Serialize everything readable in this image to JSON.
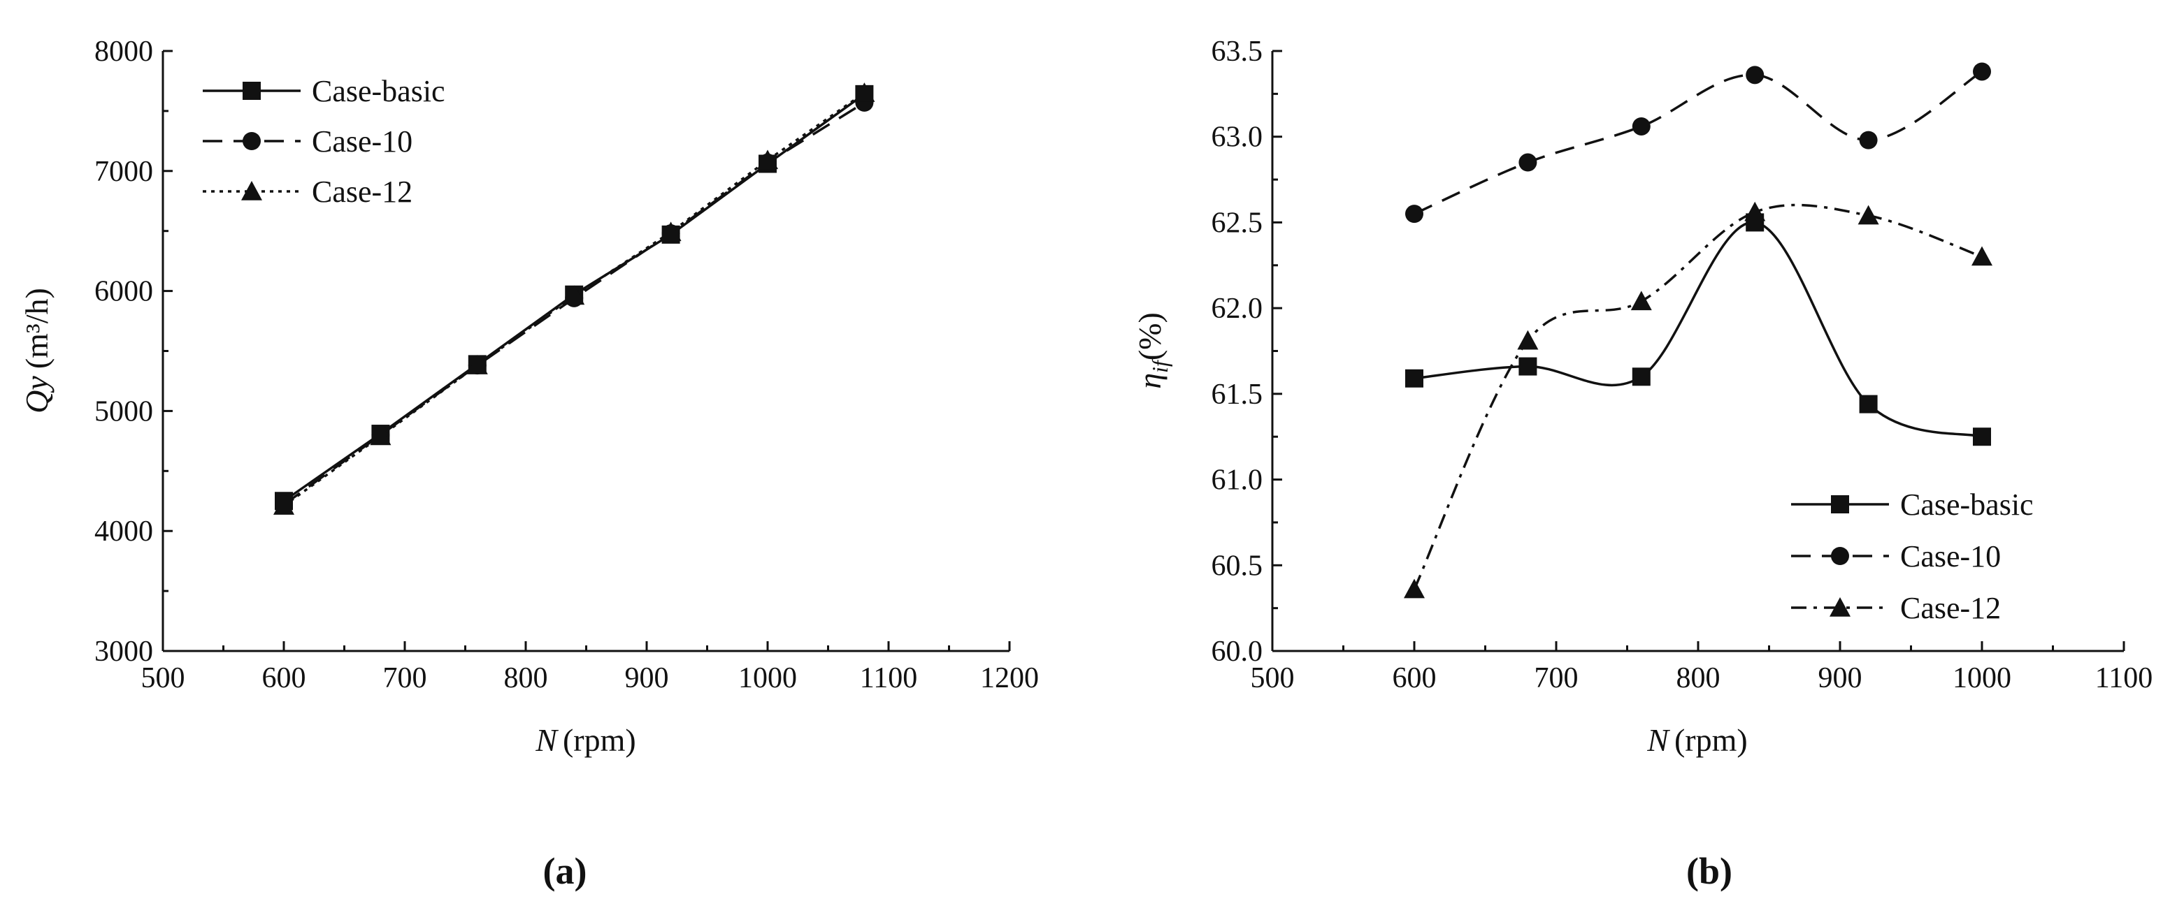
{
  "panels": [
    {
      "label": "(a)",
      "chart_data": {
        "type": "line",
        "x_label": "N",
        "x_unit": "(rpm)",
        "y_label_main": "Qy",
        "y_unit": "(m³/h)",
        "xlim": [
          500,
          1200
        ],
        "ylim": [
          3000,
          8000
        ],
        "xticks": [
          500,
          600,
          700,
          800,
          900,
          1000,
          1100,
          1200
        ],
        "yticks": [
          3000,
          4000,
          5000,
          6000,
          7000,
          8000
        ],
        "grid": false,
        "legend_position": "top-left",
        "smooth": false,
        "series": [
          {
            "name": "Case-basic",
            "dash": "solid",
            "marker": "square",
            "x": [
              600,
              680,
              760,
              840,
              920,
              1000,
              1080
            ],
            "y": [
              4250,
              4810,
              5390,
              5970,
              6470,
              7060,
              7640
            ]
          },
          {
            "name": "Case-10",
            "dash": "dashed",
            "marker": "circle",
            "x": [
              600,
              680,
              760,
              840,
              920,
              1000,
              1080
            ],
            "y": [
              4220,
              4800,
              5380,
              5940,
              6480,
              7070,
              7570
            ]
          },
          {
            "name": "Case-12",
            "dash": "dotted",
            "marker": "triangle",
            "x": [
              600,
              680,
              760,
              840,
              920,
              1000,
              1080
            ],
            "y": [
              4210,
              4790,
              5380,
              5960,
              6490,
              7090,
              7650
            ]
          }
        ]
      }
    },
    {
      "label": "(b)",
      "chart_data": {
        "type": "line",
        "x_label": "N",
        "x_unit": "(rpm)",
        "y_label_main": "η",
        "y_label_sub": "if",
        "y_unit": "(%)",
        "xlim": [
          500,
          1100
        ],
        "ylim": [
          60.0,
          63.5
        ],
        "xticks": [
          500,
          600,
          700,
          800,
          900,
          1000,
          1100
        ],
        "yticks": [
          "60.0",
          "60.5",
          "61.0",
          "61.5",
          "62.0",
          "62.5",
          "63.0",
          "63.5"
        ],
        "grid": false,
        "legend_position": "bottom-right",
        "smooth": true,
        "series": [
          {
            "name": "Case-basic",
            "dash": "solid",
            "marker": "square",
            "x": [
              600,
              680,
              760,
              840,
              920,
              1000
            ],
            "y": [
              61.59,
              61.66,
              61.6,
              62.5,
              61.44,
              61.25
            ]
          },
          {
            "name": "Case-10",
            "dash": "dashed",
            "marker": "circle",
            "x": [
              600,
              680,
              760,
              840,
              920,
              1000
            ],
            "y": [
              62.55,
              62.85,
              63.06,
              63.36,
              62.98,
              63.38
            ]
          },
          {
            "name": "Case-12",
            "dash": "dashdot",
            "marker": "triangle",
            "x": [
              600,
              680,
              760,
              840,
              920,
              1000
            ],
            "y": [
              60.36,
              61.81,
              62.04,
              62.56,
              62.54,
              62.3
            ]
          }
        ]
      }
    }
  ]
}
